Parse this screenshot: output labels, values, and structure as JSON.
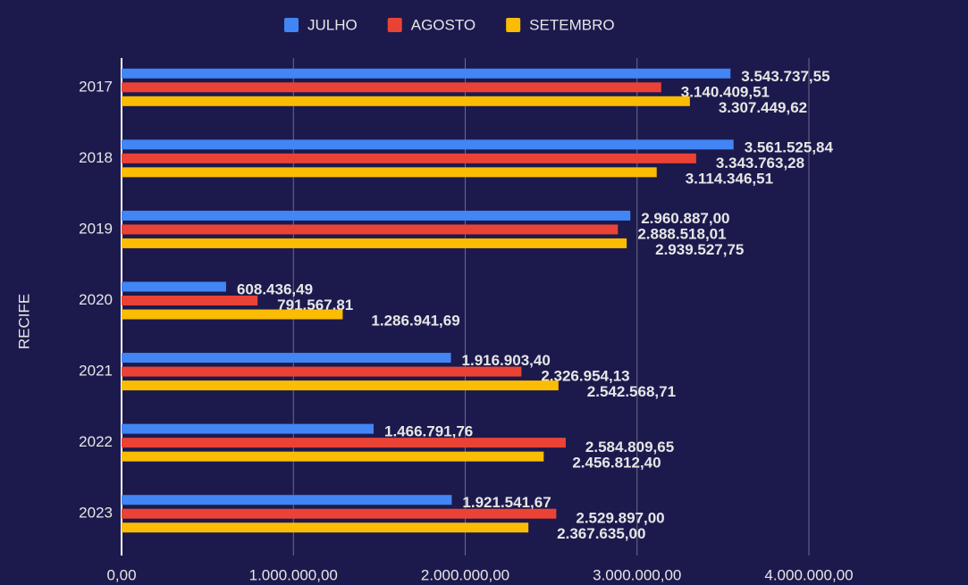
{
  "chart_data": {
    "type": "bar",
    "orientation": "horizontal",
    "y_label": "RECIFE",
    "categories": [
      "2017",
      "2018",
      "2019",
      "2020",
      "2021",
      "2022",
      "2023"
    ],
    "series": [
      {
        "name": "JULHO",
        "color": "#4285f4",
        "values": [
          3543737.55,
          3561525.84,
          2960887.0,
          608436.49,
          1916903.4,
          1466791.76,
          1921541.67
        ],
        "value_labels": [
          "3.543.737,55",
          "3.561.525,84",
          "2.960.887,00",
          "608.436,49",
          "1.916.903,40",
          "1.466.791,76",
          "1.921.541,67"
        ]
      },
      {
        "name": "AGOSTO",
        "color": "#ea4335",
        "values": [
          3140409.51,
          3343763.28,
          2888518.01,
          791567.81,
          2326954.13,
          2584809.65,
          2529897.0
        ],
        "value_labels": [
          "3.140.409,51",
          "3.343.763,28",
          "2.888.518,01",
          "791.567,81",
          "2.326.954,13",
          "2.584.809,65",
          "2.529.897,00"
        ]
      },
      {
        "name": "SETEMBRO",
        "color": "#fbbc04",
        "values": [
          3307449.62,
          3114346.51,
          2939527.75,
          1286941.69,
          2542568.71,
          2456812.4,
          2367635.0
        ],
        "value_labels": [
          "3.307.449,62",
          "3.114.346,51",
          "2.939.527,75",
          "1.286.941,69",
          "2.542.568,71",
          "2.456.812,40",
          "2.367.635,00"
        ]
      }
    ],
    "xlim": [
      0,
      4000000
    ],
    "xticks": [
      {
        "value": 0,
        "label": "0,00"
      },
      {
        "value": 1000000,
        "label": "1.000.000,00"
      },
      {
        "value": 2000000,
        "label": "2.000.000,00"
      },
      {
        "value": 3000000,
        "label": "3.000.000,00"
      },
      {
        "value": 4000000,
        "label": "4.000.000,00"
      }
    ],
    "grid": true,
    "legend": "top"
  }
}
